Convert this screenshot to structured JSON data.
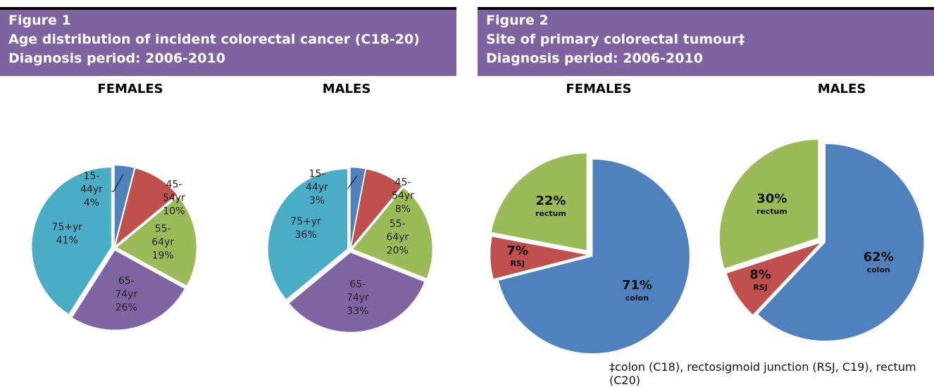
{
  "figures": [
    {
      "label": "Figure 1",
      "title": "Age distribution of incident colorectal cancer (C18-20)",
      "period": "Diagnosis period: 2006-2010"
    },
    {
      "label": "Figure 2",
      "title": "Site of primary colorectal tumour‡",
      "period": "Diagnosis period: 2006-2010",
      "footnote": "‡colon (C18), rectosigmoid junction (RSJ, C19), rectum (C20)"
    }
  ],
  "chart_data": [
    {
      "type": "pie",
      "title": "FEMALES",
      "categories": [
        "15-44yr",
        "45-54yr",
        "55-64yr",
        "65-74yr",
        "75+yr"
      ],
      "values": [
        4,
        10,
        19,
        26,
        41
      ],
      "value_labels": [
        "4%",
        "10%",
        "19%",
        "26%",
        "41%"
      ],
      "colors": [
        "#4f81bd",
        "#c0504d",
        "#9bbb59",
        "#8064a2",
        "#4bacc6"
      ]
    },
    {
      "type": "pie",
      "title": "MALES",
      "categories": [
        "15-44yr",
        "45-54yr",
        "55-64yr",
        "65-74yr",
        "75+yr"
      ],
      "values": [
        3,
        8,
        20,
        33,
        36
      ],
      "value_labels": [
        "3%",
        "8%",
        "20%",
        "33%",
        "36%"
      ],
      "colors": [
        "#4f81bd",
        "#c0504d",
        "#9bbb59",
        "#8064a2",
        "#4bacc6"
      ]
    },
    {
      "type": "pie",
      "title": "FEMALES",
      "categories": [
        "colon",
        "RSJ",
        "rectum"
      ],
      "values": [
        71,
        7,
        22
      ],
      "value_labels": [
        "71%",
        "7%",
        "22%"
      ],
      "colors": [
        "#4f81bd",
        "#c0504d",
        "#9bbb59"
      ]
    },
    {
      "type": "pie",
      "title": "MALES",
      "categories": [
        "colon",
        "RSJ",
        "rectum"
      ],
      "values": [
        62,
        8,
        30
      ],
      "value_labels": [
        "62%",
        "8%",
        "30%"
      ],
      "colors": [
        "#4f81bd",
        "#c0504d",
        "#9bbb59"
      ]
    }
  ]
}
